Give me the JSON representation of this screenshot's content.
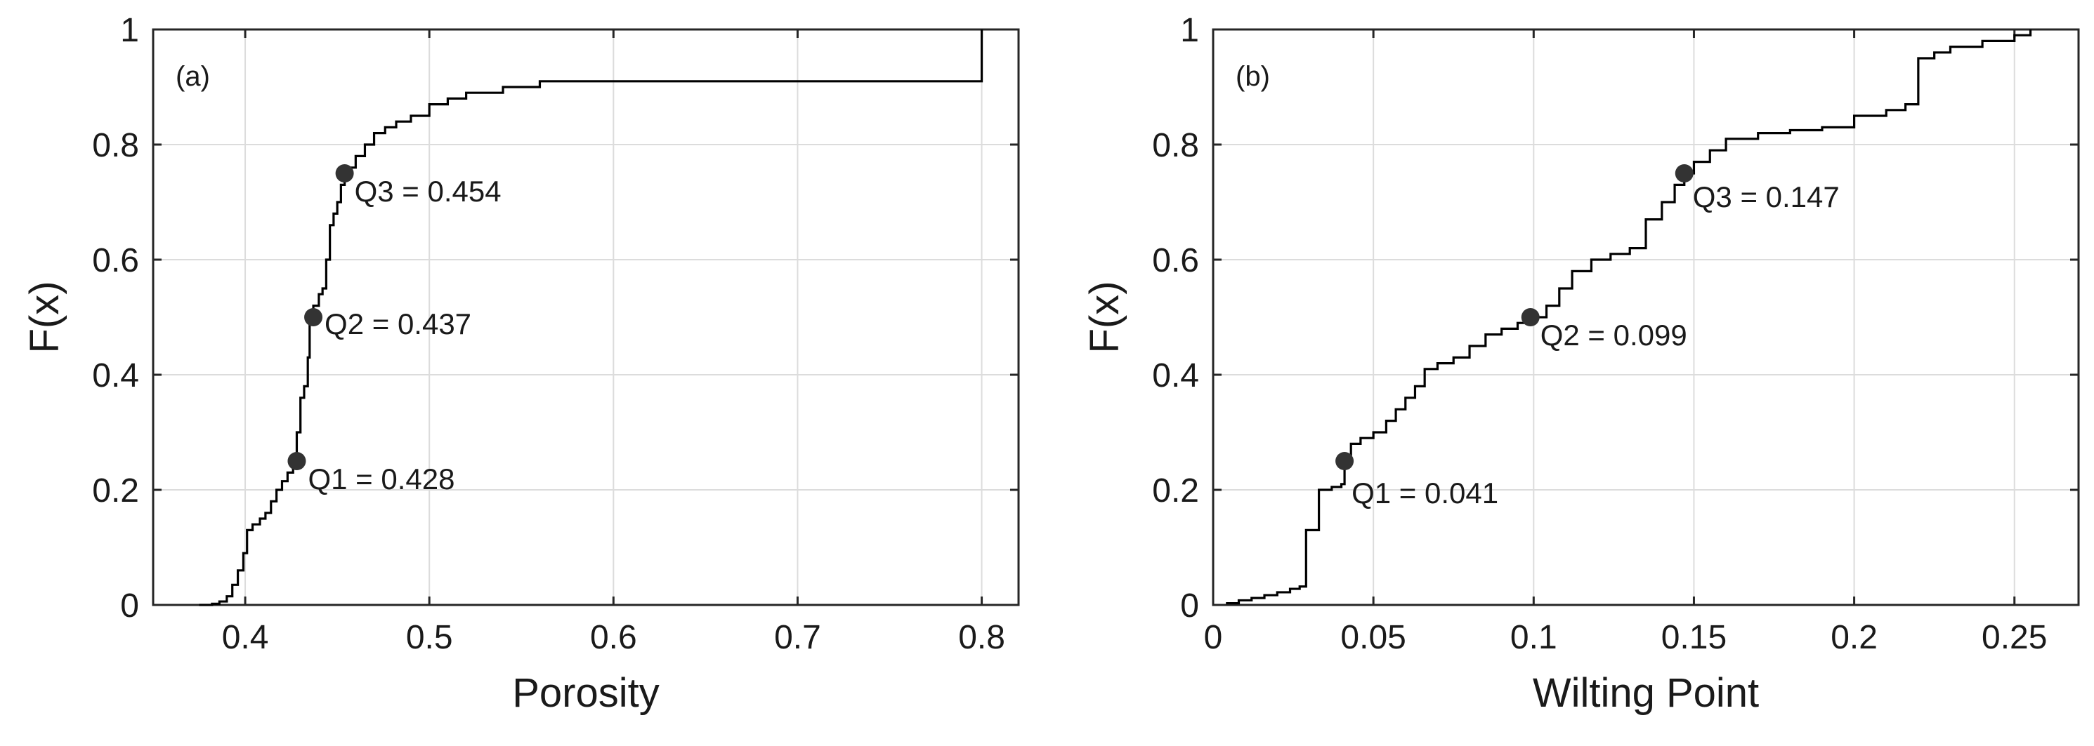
{
  "chart_data": [
    {
      "type": "line",
      "subtype": "empirical-cdf",
      "panel_label": "(a)",
      "xlabel": "Porosity",
      "ylabel": "F(x)",
      "xlim": [
        0.35,
        0.82
      ],
      "ylim": [
        0,
        1
      ],
      "xticks": [
        0.4,
        0.5,
        0.6,
        0.7,
        0.8
      ],
      "xtick_labels": [
        "0.4",
        "0.5",
        "0.6",
        "0.7",
        "0.8"
      ],
      "yticks": [
        0,
        0.2,
        0.4,
        0.6,
        0.8,
        1
      ],
      "ytick_labels": [
        "0",
        "0.2",
        "0.4",
        "0.6",
        "0.8",
        "1"
      ],
      "grid": true,
      "line_color": "#000000",
      "marker_color": "#333333",
      "series": [
        {
          "x": [
            0.375,
            0.382,
            0.386,
            0.39,
            0.393,
            0.396,
            0.399,
            0.401,
            0.404,
            0.408,
            0.411,
            0.414,
            0.417,
            0.42,
            0.423,
            0.426,
            0.428,
            0.43,
            0.432,
            0.434,
            0.435,
            0.437,
            0.44,
            0.442,
            0.444,
            0.446,
            0.448,
            0.45,
            0.452,
            0.454,
            0.457,
            0.46,
            0.465,
            0.47,
            0.476,
            0.482,
            0.49,
            0.5,
            0.51,
            0.52,
            0.54,
            0.56,
            0.6,
            0.7,
            0.8
          ],
          "y": [
            0.0,
            0.002,
            0.006,
            0.015,
            0.035,
            0.06,
            0.09,
            0.13,
            0.14,
            0.15,
            0.16,
            0.18,
            0.2,
            0.215,
            0.23,
            0.25,
            0.3,
            0.36,
            0.38,
            0.43,
            0.5,
            0.52,
            0.54,
            0.55,
            0.6,
            0.66,
            0.68,
            0.7,
            0.73,
            0.75,
            0.76,
            0.78,
            0.8,
            0.82,
            0.83,
            0.84,
            0.85,
            0.87,
            0.88,
            0.89,
            0.9,
            0.91,
            0.91,
            0.91,
            1.0
          ]
        }
      ],
      "quartiles": [
        {
          "x": 0.428,
          "y": 0.25,
          "label": "Q1 = 0.428"
        },
        {
          "x": 0.437,
          "y": 0.5,
          "label": "Q2 = 0.437"
        },
        {
          "x": 0.454,
          "y": 0.75,
          "label": "Q3 = 0.454"
        }
      ]
    },
    {
      "type": "line",
      "subtype": "empirical-cdf",
      "panel_label": "(b)",
      "xlabel": "Wilting Point",
      "ylabel": "F(x)",
      "xlim": [
        0,
        0.27
      ],
      "ylim": [
        0,
        1
      ],
      "xticks": [
        0,
        0.05,
        0.1,
        0.15,
        0.2,
        0.25
      ],
      "xtick_labels": [
        "0",
        "0.05",
        "0.1",
        "0.15",
        "0.2",
        "0.25"
      ],
      "yticks": [
        0,
        0.2,
        0.4,
        0.6,
        0.8,
        1
      ],
      "ytick_labels": [
        "0",
        "0.2",
        "0.4",
        "0.6",
        "0.8",
        "1"
      ],
      "grid": true,
      "line_color": "#000000",
      "marker_color": "#333333",
      "series": [
        {
          "x": [
            0.004,
            0.008,
            0.012,
            0.016,
            0.02,
            0.024,
            0.027,
            0.029,
            0.033,
            0.037,
            0.04,
            0.041,
            0.043,
            0.046,
            0.05,
            0.054,
            0.057,
            0.06,
            0.063,
            0.066,
            0.07,
            0.075,
            0.08,
            0.085,
            0.09,
            0.095,
            0.099,
            0.104,
            0.108,
            0.112,
            0.118,
            0.124,
            0.13,
            0.135,
            0.14,
            0.144,
            0.147,
            0.15,
            0.155,
            0.16,
            0.17,
            0.18,
            0.19,
            0.2,
            0.21,
            0.216,
            0.22,
            0.225,
            0.23,
            0.24,
            0.25,
            0.255
          ],
          "y": [
            0.003,
            0.008,
            0.012,
            0.017,
            0.022,
            0.028,
            0.032,
            0.13,
            0.2,
            0.205,
            0.21,
            0.25,
            0.28,
            0.29,
            0.3,
            0.32,
            0.34,
            0.36,
            0.38,
            0.41,
            0.42,
            0.43,
            0.45,
            0.47,
            0.48,
            0.49,
            0.5,
            0.52,
            0.55,
            0.58,
            0.6,
            0.61,
            0.62,
            0.67,
            0.7,
            0.73,
            0.75,
            0.77,
            0.79,
            0.81,
            0.82,
            0.825,
            0.83,
            0.85,
            0.86,
            0.87,
            0.95,
            0.96,
            0.97,
            0.98,
            0.99,
            1.0
          ]
        }
      ],
      "quartiles": [
        {
          "x": 0.041,
          "y": 0.25,
          "label": "Q1 = 0.041"
        },
        {
          "x": 0.099,
          "y": 0.5,
          "label": "Q2 = 0.099"
        },
        {
          "x": 0.147,
          "y": 0.75,
          "label": "Q3 = 0.147"
        }
      ]
    }
  ]
}
